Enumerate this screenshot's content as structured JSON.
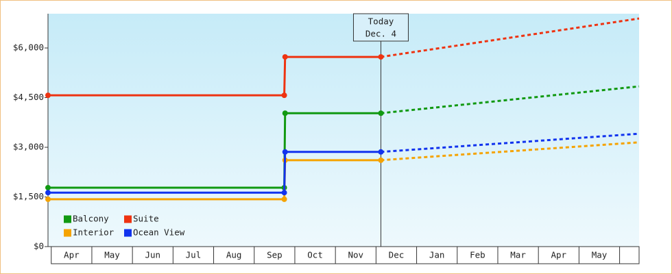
{
  "chart_data": {
    "type": "line",
    "categories": [
      "Apr",
      "May",
      "Jun",
      "Jul",
      "Aug",
      "Sep",
      "Oct",
      "Nov",
      "Dec",
      "Jan",
      "Feb",
      "Mar",
      "Apr",
      "May"
    ],
    "x": [
      -0.08,
      5.74,
      5.76,
      8.12,
      14.48
    ],
    "xlim": [
      -0.08,
      14.48
    ],
    "series": [
      {
        "name": "Balcony",
        "color": "#119911",
        "values": [
          1780,
          1780,
          4030,
          4030,
          4840
        ]
      },
      {
        "name": "Suite",
        "color": "#ee3311",
        "values": [
          4570,
          4570,
          5730,
          5730,
          6890
        ]
      },
      {
        "name": "Interior",
        "color": "#f5a300",
        "values": [
          1430,
          1430,
          2610,
          2610,
          3150
        ]
      },
      {
        "name": "Ocean View",
        "color": "#1133ee",
        "values": [
          1630,
          1630,
          2860,
          2860,
          3410
        ]
      }
    ],
    "ylim": [
      0,
      7000
    ],
    "yticks": [
      {
        "value": 0,
        "label": "$0"
      },
      {
        "value": 1500,
        "label": "$1,500"
      },
      {
        "value": 3000,
        "label": "$3,000"
      },
      {
        "value": 4500,
        "label": "$4,500"
      },
      {
        "value": 6000,
        "label": "$6,000"
      }
    ],
    "today": {
      "x": 8.12,
      "label": [
        "Today",
        "Dec. 4"
      ]
    },
    "legend": "lower left"
  }
}
